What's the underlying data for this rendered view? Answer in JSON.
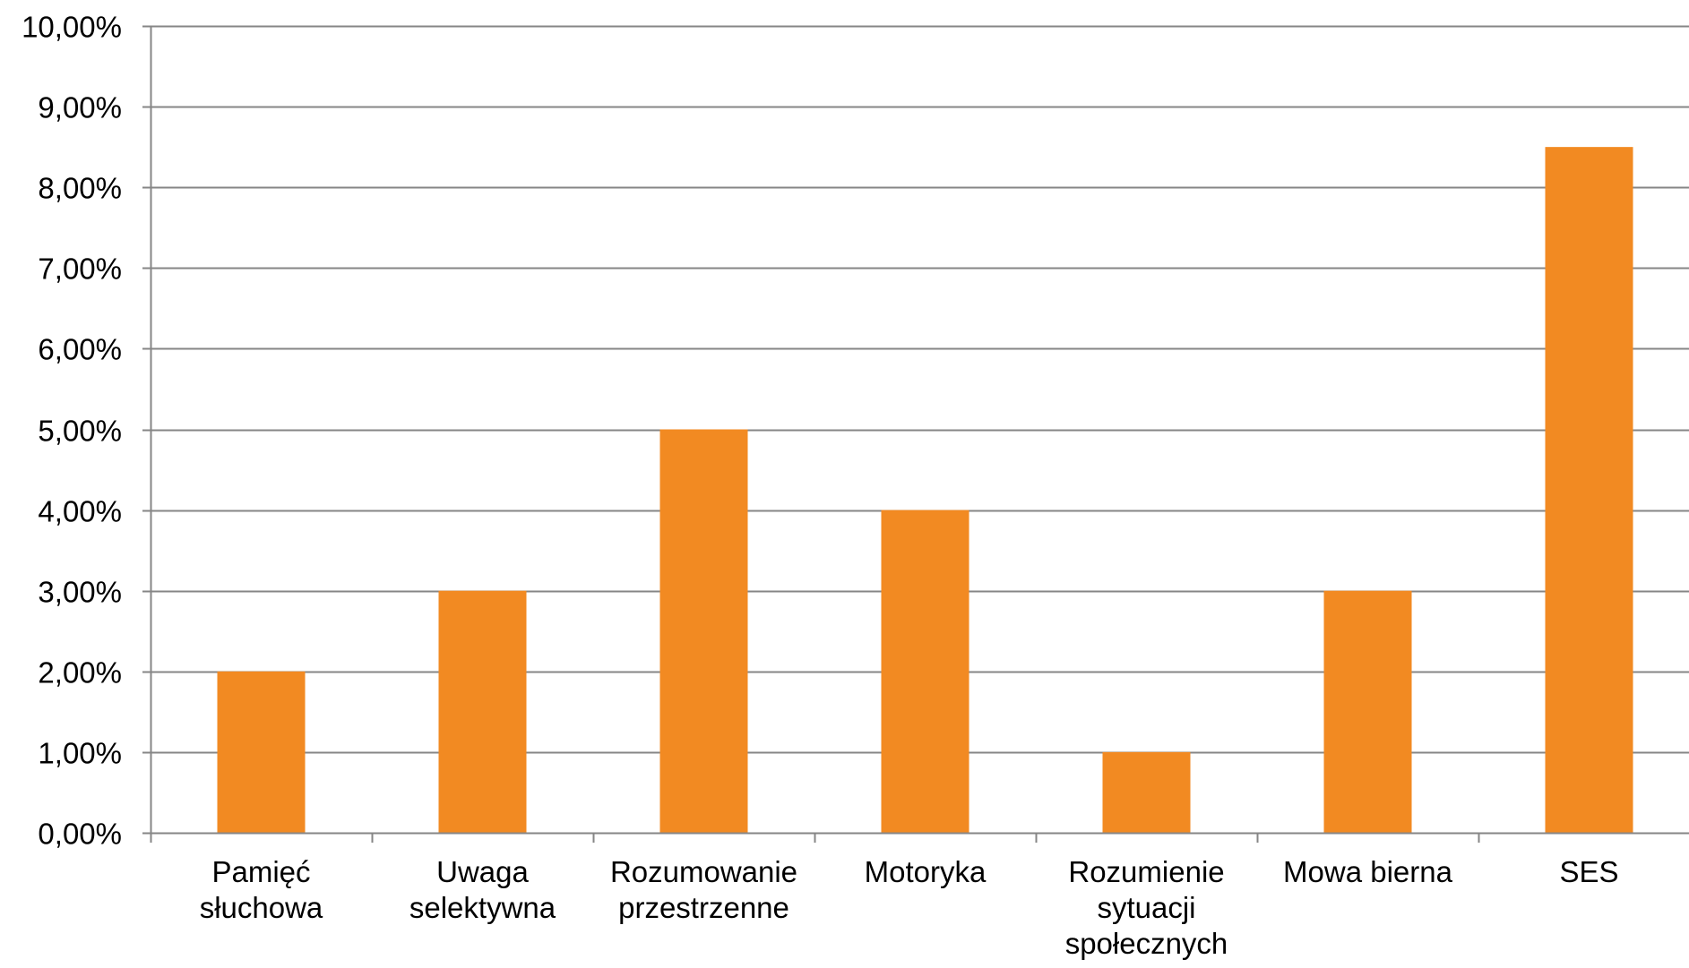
{
  "chart_data": {
    "type": "bar",
    "categories": [
      [
        "Pamięć",
        "słuchowa"
      ],
      [
        "Uwaga",
        "selektywna"
      ],
      [
        "Rozumowanie",
        "przestrzenne"
      ],
      [
        "Motoryka"
      ],
      [
        "Rozumienie",
        "sytuacji",
        "społecznych"
      ],
      [
        "Mowa bierna"
      ],
      [
        "SES"
      ]
    ],
    "values": [
      2,
      3,
      5,
      4,
      1,
      3,
      8.5
    ],
    "ylim": [
      0,
      10
    ],
    "yticks": [
      0,
      1,
      2,
      3,
      4,
      5,
      6,
      7,
      8,
      9,
      10
    ],
    "ytick_labels": [
      "0,00%",
      "1,00%",
      "2,00%",
      "3,00%",
      "4,00%",
      "5,00%",
      "6,00%",
      "7,00%",
      "8,00%",
      "9,00%",
      "10,00%"
    ],
    "grid": true,
    "legend": "none",
    "title": "",
    "xlabel": "",
    "ylabel": "",
    "colors": {
      "bar": "#F28A22",
      "grid": "#868686",
      "axis": "#868686",
      "text": "#000000"
    }
  }
}
